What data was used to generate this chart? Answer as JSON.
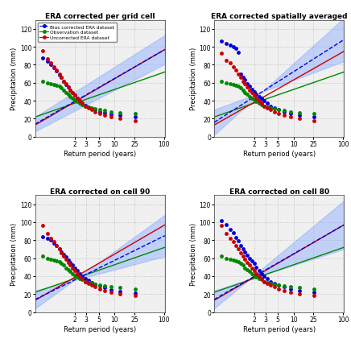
{
  "titles": [
    "ERA corrected per grid cell",
    "ERA corrected spatially averaged",
    "ERA corrected on cell 90",
    "ERA corrected on cell 80"
  ],
  "xlabel": "Return period (years)",
  "ylabel": "Precipitation (mm)",
  "xtick_returns": [
    2,
    3,
    5,
    10,
    25,
    100
  ],
  "ylim": [
    0,
    130
  ],
  "yticks": [
    0,
    20,
    40,
    60,
    80,
    100,
    120
  ],
  "legend_labels": [
    "Bias corrected ERA dataset",
    "Observation dataset",
    "Uncorrected ERA dataset"
  ],
  "blue_line_color": "#0000dd",
  "green_line_color": "#008800",
  "red_line_color": "#cc0000",
  "fill_color": "#88aaff",
  "fill_alpha": 0.45,
  "bg_color": "#f0f0f0",
  "plots": [
    {
      "blue_n": 25,
      "blue_line": [
        14.0,
        97.0
      ],
      "blue_upper": [
        22.0,
        113.0
      ],
      "blue_lower": [
        6.0,
        81.0
      ],
      "green_line": [
        22.0,
        72.0
      ],
      "red_line": [
        13.0,
        97.0
      ],
      "blue_pt_ranks": [
        1,
        2,
        3,
        4,
        5,
        6,
        7,
        8,
        9,
        10,
        11,
        12,
        13,
        14,
        15,
        16,
        17,
        18,
        19,
        20,
        21,
        22,
        23,
        24,
        25
      ],
      "blue_pt_vals": [
        22,
        24,
        25,
        27,
        28,
        30,
        31,
        33,
        35,
        37,
        40,
        43,
        46,
        49,
        52,
        55,
        58,
        62,
        66,
        69,
        73,
        77,
        80,
        84,
        88
      ],
      "green_n": 25,
      "green_pt_ranks": [
        1,
        2,
        3,
        4,
        5,
        6,
        7,
        8,
        9,
        10,
        11,
        12,
        13,
        14,
        15,
        16,
        17,
        18,
        19,
        20,
        21,
        22,
        23,
        24,
        25
      ],
      "green_pt_vals": [
        26,
        27,
        28,
        29,
        30,
        31,
        32,
        33,
        34,
        36,
        37,
        39,
        41,
        43,
        45,
        47,
        49,
        52,
        54,
        56,
        57,
        58,
        59,
        60,
        62
      ],
      "red_n": 25,
      "red_pt_ranks": [
        1,
        2,
        3,
        4,
        5,
        6,
        7,
        8,
        9,
        10,
        11,
        12,
        13,
        14,
        15,
        16,
        17,
        18,
        19,
        20,
        21,
        22,
        23,
        24,
        25
      ],
      "red_pt_vals": [
        18,
        20,
        22,
        24,
        26,
        28,
        30,
        32,
        34,
        37,
        40,
        43,
        46,
        49,
        52,
        55,
        59,
        62,
        66,
        70,
        74,
        78,
        82,
        87,
        96
      ]
    },
    {
      "blue_n": 25,
      "blue_line": [
        16.0,
        108.0
      ],
      "blue_upper": [
        2.0,
        132.0
      ],
      "blue_lower": [
        30.0,
        84.0
      ],
      "green_line": [
        22.0,
        72.0
      ],
      "red_line": [
        13.0,
        95.0
      ],
      "blue_pt_ranks": [
        1,
        2,
        3,
        4,
        5,
        6,
        7,
        8,
        9,
        10,
        11,
        12,
        13,
        14,
        15,
        16,
        17,
        18,
        19,
        20,
        21,
        22,
        23,
        24,
        25
      ],
      "blue_pt_vals": [
        22,
        24,
        26,
        28,
        30,
        32,
        34,
        37,
        40,
        43,
        45,
        47,
        50,
        53,
        56,
        59,
        63,
        66,
        70,
        94,
        98,
        100,
        102,
        104,
        106
      ],
      "green_n": 25,
      "green_pt_ranks": [
        1,
        2,
        3,
        4,
        5,
        6,
        7,
        8,
        9,
        10,
        11,
        12,
        13,
        14,
        15,
        16,
        17,
        18,
        19,
        20,
        21,
        22,
        23,
        24,
        25
      ],
      "green_pt_vals": [
        26,
        27,
        28,
        29,
        30,
        31,
        32,
        33,
        34,
        36,
        37,
        39,
        41,
        43,
        45,
        47,
        49,
        52,
        54,
        56,
        57,
        58,
        59,
        60,
        62
      ],
      "red_n": 25,
      "red_pt_ranks": [
        1,
        2,
        3,
        4,
        5,
        6,
        7,
        8,
        9,
        10,
        11,
        12,
        13,
        14,
        15,
        16,
        17,
        18,
        19,
        20,
        21,
        22,
        23,
        24,
        25
      ],
      "red_pt_vals": [
        18,
        20,
        22,
        24,
        26,
        28,
        30,
        32,
        34,
        37,
        40,
        43,
        46,
        49,
        52,
        55,
        59,
        62,
        66,
        70,
        74,
        78,
        82,
        85,
        93
      ]
    },
    {
      "blue_n": 25,
      "blue_line": [
        14.0,
        85.0
      ],
      "blue_upper": [
        4.0,
        108.0
      ],
      "blue_lower": [
        24.0,
        62.0
      ],
      "green_line": [
        22.0,
        72.0
      ],
      "red_line": [
        13.0,
        97.0
      ],
      "blue_pt_ranks": [
        1,
        2,
        3,
        4,
        5,
        6,
        7,
        8,
        9,
        10,
        11,
        12,
        13,
        14,
        15,
        16,
        17,
        18,
        19,
        20,
        21,
        22,
        23,
        24,
        25
      ],
      "blue_pt_vals": [
        21,
        23,
        25,
        27,
        29,
        31,
        33,
        35,
        37,
        40,
        43,
        46,
        49,
        52,
        55,
        58,
        61,
        64,
        67,
        70,
        74,
        77,
        80,
        82,
        84
      ],
      "green_n": 25,
      "green_pt_ranks": [
        1,
        2,
        3,
        4,
        5,
        6,
        7,
        8,
        9,
        10,
        11,
        12,
        13,
        14,
        15,
        16,
        17,
        18,
        19,
        20,
        21,
        22,
        23,
        24,
        25
      ],
      "green_pt_vals": [
        26,
        27,
        28,
        29,
        30,
        31,
        32,
        33,
        34,
        36,
        37,
        39,
        41,
        43,
        45,
        47,
        49,
        52,
        54,
        56,
        57,
        58,
        59,
        60,
        62
      ],
      "red_n": 25,
      "red_pt_ranks": [
        1,
        2,
        3,
        4,
        5,
        6,
        7,
        8,
        9,
        10,
        11,
        12,
        13,
        14,
        15,
        16,
        17,
        18,
        19,
        20,
        21,
        22,
        23,
        24,
        25
      ],
      "red_pt_vals": [
        18,
        20,
        22,
        24,
        26,
        28,
        30,
        32,
        34,
        37,
        40,
        43,
        46,
        49,
        52,
        55,
        59,
        62,
        66,
        70,
        74,
        78,
        82,
        87,
        96
      ]
    },
    {
      "blue_n": 25,
      "blue_line": [
        14.0,
        97.0
      ],
      "blue_upper": [
        4.0,
        124.0
      ],
      "blue_lower": [
        24.0,
        70.0
      ],
      "green_line": [
        22.0,
        72.0
      ],
      "red_line": [
        13.0,
        97.0
      ],
      "blue_pt_ranks": [
        1,
        2,
        3,
        4,
        5,
        6,
        7,
        8,
        9,
        10,
        11,
        12,
        13,
        14,
        15,
        16,
        17,
        18,
        19,
        20,
        21,
        22,
        23,
        24,
        25
      ],
      "blue_pt_vals": [
        22,
        24,
        26,
        28,
        30,
        32,
        34,
        37,
        40,
        43,
        46,
        50,
        54,
        57,
        60,
        63,
        67,
        70,
        74,
        79,
        83,
        88,
        92,
        97,
        102
      ],
      "green_n": 25,
      "green_pt_ranks": [
        1,
        2,
        3,
        4,
        5,
        6,
        7,
        8,
        9,
        10,
        11,
        12,
        13,
        14,
        15,
        16,
        17,
        18,
        19,
        20,
        21,
        22,
        23,
        24,
        25
      ],
      "green_pt_vals": [
        26,
        27,
        28,
        29,
        30,
        31,
        32,
        33,
        34,
        36,
        37,
        39,
        41,
        43,
        45,
        47,
        49,
        52,
        54,
        56,
        57,
        58,
        59,
        60,
        62
      ],
      "red_n": 25,
      "red_pt_ranks": [
        1,
        2,
        3,
        4,
        5,
        6,
        7,
        8,
        9,
        10,
        11,
        12,
        13,
        14,
        15,
        16,
        17,
        18,
        19,
        20,
        21,
        22,
        23,
        24,
        25
      ],
      "red_pt_vals": [
        18,
        20,
        22,
        24,
        26,
        28,
        30,
        32,
        34,
        37,
        40,
        43,
        46,
        49,
        52,
        55,
        59,
        62,
        66,
        70,
        74,
        78,
        82,
        87,
        96
      ]
    }
  ]
}
